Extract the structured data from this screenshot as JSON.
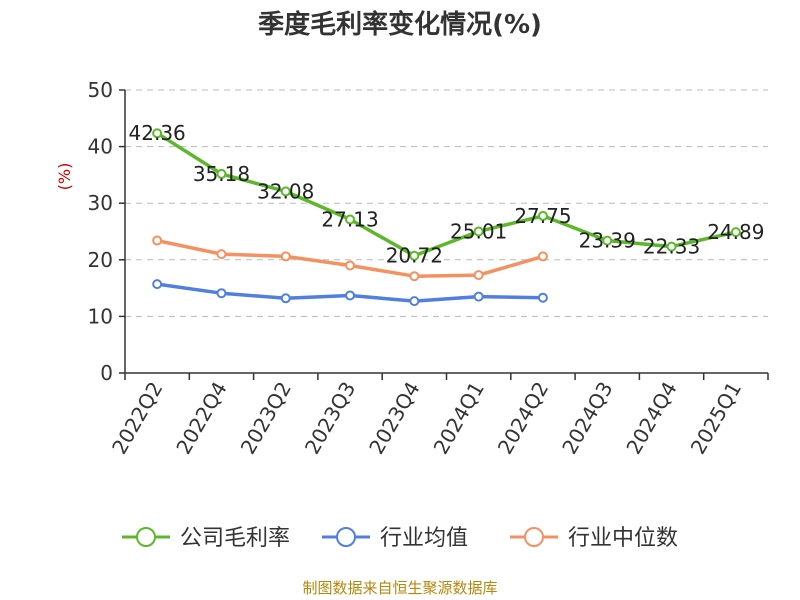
{
  "title": "季度毛利率变化情况(%)",
  "footer": "制图数据来自恒生聚源数据库",
  "chart_data": {
    "type": "line",
    "title": "季度毛利率变化情况(%)",
    "xlabel": "",
    "ylabel": "(%)",
    "ylim": [
      0,
      50
    ],
    "yticks": [
      0,
      10,
      20,
      30,
      40,
      50
    ],
    "grid": true,
    "legend_position": "bottom",
    "categories": [
      "2022Q2",
      "2022Q4",
      "2023Q2",
      "2023Q3",
      "2023Q4",
      "2024Q1",
      "2024Q2",
      "2024Q3",
      "2024Q4",
      "2025Q1"
    ],
    "series": [
      {
        "name": "公司毛利率",
        "color": "#5cb82a",
        "values": [
          42.36,
          35.18,
          32.08,
          27.13,
          20.72,
          25.01,
          27.75,
          23.39,
          22.33,
          24.89
        ],
        "labels": [
          "42.36",
          "35.18",
          "32.08",
          "27.13",
          "20.72",
          "25.01",
          "27.75",
          "23.39",
          "22.33",
          "24.89"
        ]
      },
      {
        "name": "行业均值",
        "color": "#4f7fe0",
        "values": [
          15.7,
          14.1,
          13.2,
          13.7,
          12.7,
          13.5,
          13.3,
          null,
          null,
          null
        ]
      },
      {
        "name": "行业中位数",
        "color": "#f59160",
        "values": [
          23.4,
          21.0,
          20.6,
          19.0,
          17.1,
          17.3,
          20.6,
          null,
          null,
          null
        ]
      }
    ]
  }
}
